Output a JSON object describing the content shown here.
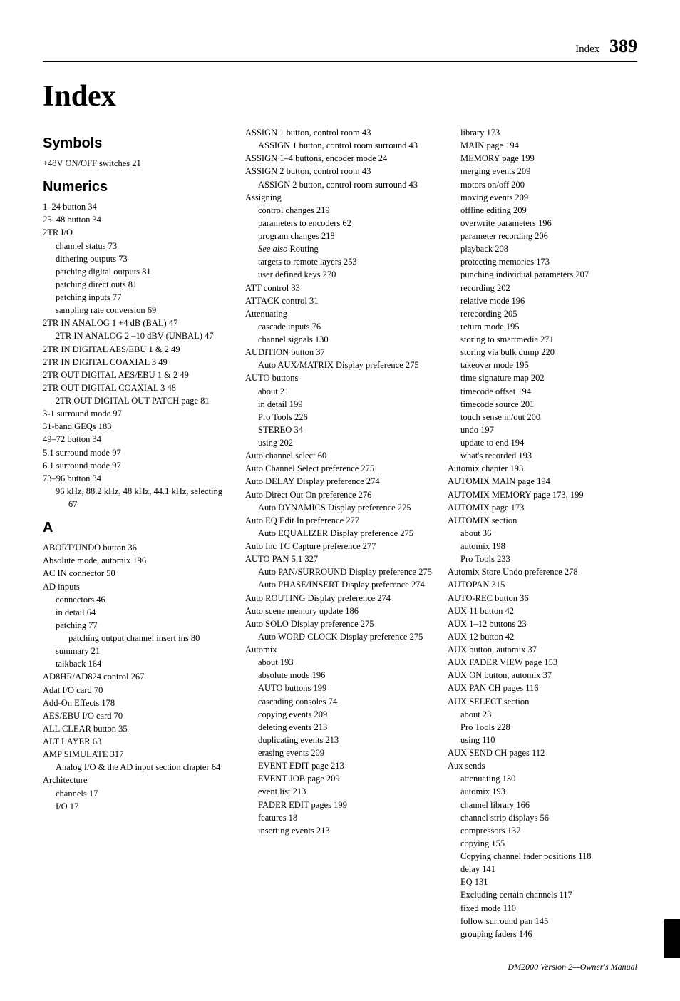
{
  "header": {
    "label": "Index",
    "page": "389"
  },
  "title": "Index",
  "footer": "DM2000 Version 2—Owner's Manual",
  "col1": {
    "sections": [
      {
        "head": "Symbols",
        "entries": [
          {
            "t": "+48V ON/OFF switches 21",
            "lv": 0
          }
        ]
      },
      {
        "head": "Numerics",
        "entries": [
          {
            "t": "1–24 button 34",
            "lv": 0
          },
          {
            "t": "25–48 button 34",
            "lv": 0
          },
          {
            "t": "2TR I/O",
            "lv": 0
          },
          {
            "t": "channel status 73",
            "lv": 1
          },
          {
            "t": "dithering outputs 73",
            "lv": 1
          },
          {
            "t": "patching digital outputs 81",
            "lv": 1
          },
          {
            "t": "patching direct outs 81",
            "lv": 1
          },
          {
            "t": "patching inputs 77",
            "lv": 1
          },
          {
            "t": "sampling rate conversion 69",
            "lv": 1
          },
          {
            "t": "2TR IN ANALOG 1 +4 dB (BAL) 47",
            "lv": 0
          },
          {
            "t": "2TR IN ANALOG 2 –10 dBV (UNBAL) 47",
            "lv": 0,
            "wrap": true
          },
          {
            "t": "2TR IN DIGITAL AES/EBU 1 & 2 49",
            "lv": 0
          },
          {
            "t": "2TR IN DIGITAL COAXIAL 3 49",
            "lv": 0
          },
          {
            "t": "2TR OUT DIGITAL AES/EBU 1 & 2 49",
            "lv": 0
          },
          {
            "t": "2TR OUT DIGITAL COAXIAL 3 48",
            "lv": 0
          },
          {
            "t": "2TR OUT DIGITAL OUT PATCH page 81",
            "lv": 0,
            "wrap": true
          },
          {
            "t": "3-1 surround mode 97",
            "lv": 0
          },
          {
            "t": "31-band GEQs 183",
            "lv": 0
          },
          {
            "t": "49–72 button 34",
            "lv": 0
          },
          {
            "t": "5.1 surround mode 97",
            "lv": 0
          },
          {
            "t": "6.1 surround mode 97",
            "lv": 0
          },
          {
            "t": "73–96 button 34",
            "lv": 0
          },
          {
            "t": "96 kHz, 88.2 kHz, 48 kHz, 44.1 kHz, selecting 67",
            "lv": 0,
            "wrap": true
          }
        ]
      },
      {
        "head": "A",
        "entries": [
          {
            "t": "ABORT/UNDO button 36",
            "lv": 0
          },
          {
            "t": "Absolute mode, automix 196",
            "lv": 0
          },
          {
            "t": "AC IN connector 50",
            "lv": 0
          },
          {
            "t": "AD inputs",
            "lv": 0
          },
          {
            "t": "connectors 46",
            "lv": 1
          },
          {
            "t": "in detail 64",
            "lv": 1
          },
          {
            "t": "patching 77",
            "lv": 1
          },
          {
            "t": "patching output channel insert ins 80",
            "lv": 1,
            "wrap": true
          },
          {
            "t": "summary 21",
            "lv": 1
          },
          {
            "t": "talkback 164",
            "lv": 1
          },
          {
            "t": "AD8HR/AD824 control 267",
            "lv": 0
          },
          {
            "t": "Adat I/O card 70",
            "lv": 0
          },
          {
            "t": "Add-On Effects 178",
            "lv": 0
          },
          {
            "t": "AES/EBU I/O card 70",
            "lv": 0
          },
          {
            "t": "ALL CLEAR button 35",
            "lv": 0
          },
          {
            "t": "ALT LAYER 63",
            "lv": 0
          },
          {
            "t": "AMP SIMULATE 317",
            "lv": 0
          },
          {
            "t": "Analog I/O & the AD input section chapter 64",
            "lv": 0,
            "wrap": true
          },
          {
            "t": "Architecture",
            "lv": 0
          },
          {
            "t": "channels 17",
            "lv": 1
          },
          {
            "t": "I/O 17",
            "lv": 1
          }
        ]
      }
    ]
  },
  "col2": {
    "entries": [
      {
        "t": "ASSIGN 1 button, control room 43",
        "lv": 0
      },
      {
        "t": "ASSIGN 1 button, control room surround 43",
        "lv": 0,
        "wrap": true
      },
      {
        "t": "ASSIGN 1–4 buttons, encoder mode 24",
        "lv": 0
      },
      {
        "t": "ASSIGN 2 button, control room 43",
        "lv": 0
      },
      {
        "t": "ASSIGN 2 button, control room surround 43",
        "lv": 0,
        "wrap": true
      },
      {
        "t": "Assigning",
        "lv": 0
      },
      {
        "t": "control changes 219",
        "lv": 1
      },
      {
        "t": "parameters to encoders 62",
        "lv": 1
      },
      {
        "t": "program changes 218",
        "lv": 1
      },
      {
        "t": "See also Routing",
        "lv": 1,
        "italicPrefix": "See also",
        "rest": " Routing"
      },
      {
        "t": "targets to remote layers 253",
        "lv": 1
      },
      {
        "t": "user defined keys 270",
        "lv": 1
      },
      {
        "t": "ATT control 33",
        "lv": 0
      },
      {
        "t": "ATTACK control 31",
        "lv": 0
      },
      {
        "t": "Attenuating",
        "lv": 0
      },
      {
        "t": "cascade inputs 76",
        "lv": 1
      },
      {
        "t": "channel signals 130",
        "lv": 1
      },
      {
        "t": "AUDITION button 37",
        "lv": 0
      },
      {
        "t": "Auto AUX/MATRIX Display preference 275",
        "lv": 0,
        "wrap": true
      },
      {
        "t": "AUTO buttons",
        "lv": 0
      },
      {
        "t": "about 21",
        "lv": 1
      },
      {
        "t": "in detail 199",
        "lv": 1
      },
      {
        "t": "Pro Tools 226",
        "lv": 1
      },
      {
        "t": "STEREO 34",
        "lv": 1
      },
      {
        "t": "using 202",
        "lv": 1
      },
      {
        "t": "Auto channel select 60",
        "lv": 0
      },
      {
        "t": "Auto Channel Select preference 275",
        "lv": 0
      },
      {
        "t": "Auto DELAY Display preference 274",
        "lv": 0
      },
      {
        "t": "Auto Direct Out On preference 276",
        "lv": 0
      },
      {
        "t": "Auto DYNAMICS Display preference 275",
        "lv": 0,
        "wrap": true
      },
      {
        "t": "Auto EQ Edit In preference 277",
        "lv": 0
      },
      {
        "t": "Auto EQUALIZER Display preference 275",
        "lv": 0,
        "wrap": true
      },
      {
        "t": "Auto Inc TC Capture preference 277",
        "lv": 0
      },
      {
        "t": "AUTO PAN 5.1 327",
        "lv": 0
      },
      {
        "t": "Auto PAN/SURROUND Display preference 275",
        "lv": 0,
        "wrap": true
      },
      {
        "t": "Auto PHASE/INSERT Display preference 274",
        "lv": 0,
        "wrap": true
      },
      {
        "t": "Auto ROUTING Display preference 274",
        "lv": 0
      },
      {
        "t": "Auto scene memory update 186",
        "lv": 0
      },
      {
        "t": "Auto SOLO Display preference 275",
        "lv": 0
      },
      {
        "t": "Auto WORD CLOCK Display preference 275",
        "lv": 0,
        "wrap": true
      },
      {
        "t": "Automix",
        "lv": 0
      },
      {
        "t": "about 193",
        "lv": 1
      },
      {
        "t": "absolute mode 196",
        "lv": 1
      },
      {
        "t": "AUTO buttons 199",
        "lv": 1
      },
      {
        "t": "cascading consoles 74",
        "lv": 1
      },
      {
        "t": "copying events 209",
        "lv": 1
      },
      {
        "t": "deleting events 213",
        "lv": 1
      },
      {
        "t": "duplicating events 213",
        "lv": 1
      },
      {
        "t": "erasing events 209",
        "lv": 1
      },
      {
        "t": "EVENT EDIT page 213",
        "lv": 1
      },
      {
        "t": "EVENT JOB page 209",
        "lv": 1
      },
      {
        "t": "event list 213",
        "lv": 1
      },
      {
        "t": "FADER EDIT pages 199",
        "lv": 1
      },
      {
        "t": "features 18",
        "lv": 1
      },
      {
        "t": "inserting events 213",
        "lv": 1
      }
    ]
  },
  "col3": {
    "entries": [
      {
        "t": "library 173",
        "lv": 1
      },
      {
        "t": "MAIN page 194",
        "lv": 1
      },
      {
        "t": "MEMORY page 199",
        "lv": 1
      },
      {
        "t": "merging events 209",
        "lv": 1
      },
      {
        "t": "motors on/off 200",
        "lv": 1
      },
      {
        "t": "moving events 209",
        "lv": 1
      },
      {
        "t": "offline editing 209",
        "lv": 1
      },
      {
        "t": "overwrite parameters 196",
        "lv": 1
      },
      {
        "t": "parameter recording 206",
        "lv": 1
      },
      {
        "t": "playback 208",
        "lv": 1
      },
      {
        "t": "protecting memories 173",
        "lv": 1
      },
      {
        "t": "punching individual parameters 207",
        "lv": 1
      },
      {
        "t": "recording 202",
        "lv": 1
      },
      {
        "t": "relative mode 196",
        "lv": 1
      },
      {
        "t": "rerecording 205",
        "lv": 1
      },
      {
        "t": "return mode 195",
        "lv": 1
      },
      {
        "t": "storing to smartmedia 271",
        "lv": 1
      },
      {
        "t": "storing via bulk dump 220",
        "lv": 1
      },
      {
        "t": "takeover mode 195",
        "lv": 1
      },
      {
        "t": "time signature map 202",
        "lv": 1
      },
      {
        "t": "timecode offset 194",
        "lv": 1
      },
      {
        "t": "timecode source 201",
        "lv": 1
      },
      {
        "t": "touch sense in/out 200",
        "lv": 1
      },
      {
        "t": "undo 197",
        "lv": 1
      },
      {
        "t": "update to end 194",
        "lv": 1
      },
      {
        "t": "what's recorded 193",
        "lv": 1
      },
      {
        "t": "Automix chapter 193",
        "lv": 0
      },
      {
        "t": "AUTOMIX MAIN page 194",
        "lv": 0
      },
      {
        "t": "AUTOMIX MEMORY page 173, 199",
        "lv": 0
      },
      {
        "t": "AUTOMIX page 173",
        "lv": 0
      },
      {
        "t": "AUTOMIX section",
        "lv": 0
      },
      {
        "t": "about 36",
        "lv": 1
      },
      {
        "t": "automix 198",
        "lv": 1
      },
      {
        "t": "Pro Tools 233",
        "lv": 1
      },
      {
        "t": "Automix Store Undo preference 278",
        "lv": 0
      },
      {
        "t": "AUTOPAN 315",
        "lv": 0
      },
      {
        "t": "AUTO-REC button 36",
        "lv": 0
      },
      {
        "t": "AUX 11 button 42",
        "lv": 0
      },
      {
        "t": "AUX 1–12 buttons 23",
        "lv": 0
      },
      {
        "t": "AUX 12 button 42",
        "lv": 0
      },
      {
        "t": "AUX button, automix 37",
        "lv": 0
      },
      {
        "t": "AUX FADER VIEW page 153",
        "lv": 0
      },
      {
        "t": "AUX ON button, automix 37",
        "lv": 0
      },
      {
        "t": "AUX PAN CH pages 116",
        "lv": 0
      },
      {
        "t": "AUX SELECT section",
        "lv": 0
      },
      {
        "t": "about 23",
        "lv": 1
      },
      {
        "t": "Pro Tools 228",
        "lv": 1
      },
      {
        "t": "using 110",
        "lv": 1
      },
      {
        "t": "AUX SEND CH pages 112",
        "lv": 0
      },
      {
        "t": "Aux sends",
        "lv": 0
      },
      {
        "t": "attenuating 130",
        "lv": 1
      },
      {
        "t": "automix 193",
        "lv": 1
      },
      {
        "t": "channel library 166",
        "lv": 1
      },
      {
        "t": "channel strip displays 56",
        "lv": 1
      },
      {
        "t": "compressors 137",
        "lv": 1
      },
      {
        "t": "copying 155",
        "lv": 1
      },
      {
        "t": "Copying channel fader positions 118",
        "lv": 1
      },
      {
        "t": "delay 141",
        "lv": 1
      },
      {
        "t": "EQ 131",
        "lv": 1
      },
      {
        "t": "Excluding certain channels 117",
        "lv": 1
      },
      {
        "t": "fixed mode 110",
        "lv": 1
      },
      {
        "t": "follow surround pan 145",
        "lv": 1
      },
      {
        "t": "grouping faders 146",
        "lv": 1
      }
    ]
  }
}
